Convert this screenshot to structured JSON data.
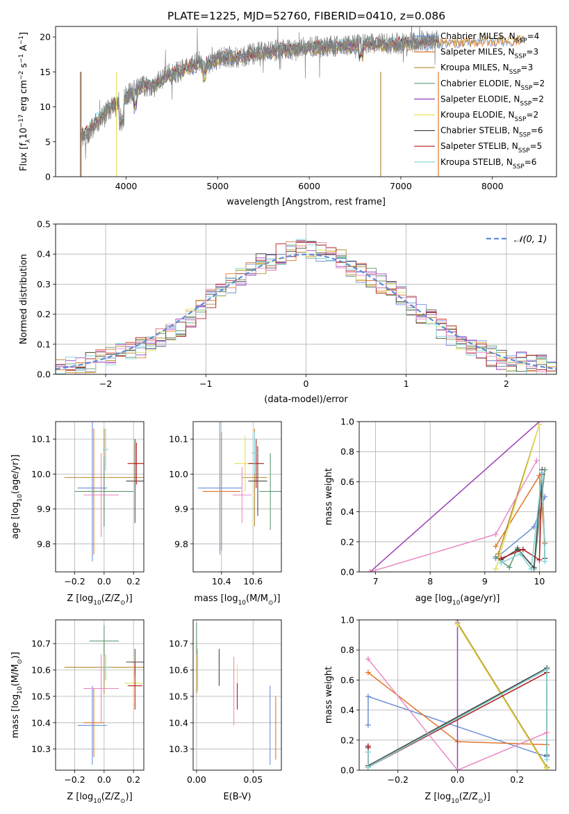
{
  "figure": {
    "title": "PLATE=1225, MJD=52760, FIBERID=0410, z=0.086"
  },
  "series_styles": [
    {
      "name": "Chabrier MILES, N$_{SSP}$=4",
      "label_main": "Chabrier MILES, N",
      "label_sub": "SSP",
      "label_tail": "=4",
      "color": "#6a8fd6"
    },
    {
      "name": "Salpeter MILES, N$_{SSP}$=3",
      "label_main": "Salpeter MILES, N",
      "label_sub": "SSP",
      "label_tail": "=3",
      "color": "#e0762b"
    },
    {
      "name": "Kroupa MILES, N$_{SSP}$=3",
      "label_main": "Kroupa MILES, N",
      "label_sub": "SSP",
      "label_tail": "=3",
      "color": "#b08a2e"
    },
    {
      "name": "Chabrier ELODIE, N$_{SSP}$=2",
      "label_main": "Chabrier ELODIE, N",
      "label_sub": "SSP",
      "label_tail": "=2",
      "color": "#5f9a73"
    },
    {
      "name": "Salpeter ELODIE, N$_{SSP}$=2",
      "label_main": "Salpeter ELODIE, N",
      "label_sub": "SSP",
      "label_tail": "=2",
      "color": "#9b3db8"
    },
    {
      "name": "Kroupa ELODIE, N$_{SSP}$=2",
      "label_main": "Kroupa ELODIE, N",
      "label_sub": "SSP",
      "label_tail": "=2",
      "color": "#e3e05a"
    },
    {
      "name": "Chabrier STELIB, N$_{SSP}$=6",
      "label_main": "Chabrier STELIB, N",
      "label_sub": "SSP",
      "label_tail": "=6",
      "color": "#4a4a4a"
    },
    {
      "name": "Salpeter STELIB, N$_{SSP}$=5",
      "label_main": "Salpeter STELIB, N",
      "label_sub": "SSP",
      "label_tail": "=5",
      "color": "#b01c1c"
    },
    {
      "name": "Kroupa STELIB, N$_{SSP}$=6",
      "label_main": "Kroupa STELIB, N",
      "label_sub": "SSP",
      "label_tail": "=6",
      "color": "#7fd3d8"
    }
  ],
  "chart_data": [
    {
      "id": "spectrum",
      "type": "line",
      "xlabel": "wavelength [Angstrom, rest frame]",
      "ylabel_main": "Flux [f",
      "ylabel_sub": "λ",
      "ylabel_mid": "10",
      "ylabel_sup1": "−17",
      "ylabel_rest": " erg cm",
      "ylabel_sup2": "−2",
      "ylabel_s": " s",
      "ylabel_sup3": "−1",
      "ylabel_a": " A",
      "ylabel_sup4": "−1",
      "ylabel_end": "]",
      "xlim": [
        3230,
        8700
      ],
      "ylim": [
        0,
        21.5
      ],
      "xticks": [
        4000,
        5000,
        6000,
        7000,
        8000
      ],
      "yticks": [
        0,
        5,
        10,
        15,
        20
      ],
      "xticklabels": [
        "4000",
        "5000",
        "6000",
        "7000",
        "8000"
      ],
      "yticklabels": [
        "0",
        "5",
        "10",
        "15",
        "20"
      ],
      "data_wavelength": [
        3500,
        3600,
        3700,
        3800,
        3900,
        4000,
        4100,
        4200,
        4300,
        4400,
        4500,
        4600,
        4700,
        4800,
        4900,
        5000,
        5100,
        5200,
        5300,
        5400,
        5500,
        5600,
        5700,
        5800,
        5900,
        6000,
        6100,
        6200,
        6300,
        6400,
        6500,
        6600,
        6700,
        6800,
        6900,
        7000,
        7100,
        7200,
        7300,
        7400
      ],
      "data_flux": [
        5.5,
        6.5,
        8.0,
        9.5,
        10.3,
        11.5,
        12.5,
        13.0,
        12.8,
        14.2,
        14.8,
        15.2,
        16.0,
        16.4,
        16.2,
        16.8,
        17.2,
        17.0,
        17.2,
        17.6,
        17.8,
        18.0,
        18.2,
        18.1,
        18.4,
        18.5,
        18.6,
        18.7,
        18.6,
        18.8,
        18.9,
        18.9,
        19.0,
        19.0,
        19.1,
        19.1,
        19.2,
        19.3,
        19.4,
        19.6
      ],
      "model_wavelength": [
        3500,
        3600,
        3700,
        3800,
        3900,
        4000,
        4100,
        4200,
        4300,
        4400,
        4500,
        4600,
        4700,
        4800,
        4900,
        5000,
        5100,
        5200,
        5300,
        5400,
        5500,
        5600,
        5700,
        5800,
        5900,
        6000,
        6100,
        6200,
        6300,
        6400,
        6500,
        6600,
        6700,
        6800,
        6900,
        7000,
        7100,
        7200,
        7300,
        7400,
        7500,
        7600,
        7700,
        7800,
        7900,
        8000,
        8100,
        8200,
        8300
      ],
      "model_flux": [
        5.8,
        6.8,
        8.2,
        9.6,
        10.5,
        11.4,
        12.4,
        13.0,
        13.1,
        14.0,
        14.7,
        15.1,
        15.8,
        16.2,
        16.3,
        16.7,
        17.0,
        17.1,
        17.2,
        17.5,
        17.7,
        17.9,
        18.1,
        18.2,
        18.3,
        18.4,
        18.5,
        18.6,
        18.6,
        18.7,
        18.8,
        18.8,
        18.9,
        18.9,
        19.0,
        19.0,
        19.1,
        19.2,
        19.3,
        19.4,
        19.5,
        19.5,
        19.6,
        19.6,
        19.7,
        19.7,
        19.8,
        19.8,
        19.9
      ]
    },
    {
      "id": "residual-hist",
      "type": "bar",
      "xlabel": "(data-model)/error",
      "ylabel": "Normed distribution",
      "legend_label": "𝒩(0, 1)",
      "xlim": [
        -2.5,
        2.5
      ],
      "ylim": [
        0,
        0.5
      ],
      "xticks": [
        -2,
        -1,
        0,
        1,
        2
      ],
      "xticklabels": [
        "−2",
        "−1",
        "0",
        "1",
        "2"
      ],
      "yticks": [
        0.0,
        0.1,
        0.2,
        0.3,
        0.4,
        0.5
      ],
      "yticklabels": [
        "0.0",
        "0.1",
        "0.2",
        "0.3",
        "0.4",
        "0.5"
      ],
      "bin_edges": [
        -2.5,
        -2.4,
        -2.3,
        -2.2,
        -2.1,
        -2.0,
        -1.9,
        -1.8,
        -1.7,
        -1.6,
        -1.5,
        -1.4,
        -1.3,
        -1.2,
        -1.1,
        -1.0,
        -0.9,
        -0.8,
        -0.7,
        -0.6,
        -0.5,
        -0.4,
        -0.3,
        -0.2,
        -0.1,
        0.0,
        0.1,
        0.2,
        0.3,
        0.4,
        0.5,
        0.6,
        0.7,
        0.8,
        0.9,
        1.0,
        1.1,
        1.2,
        1.3,
        1.4,
        1.5,
        1.6,
        1.7,
        1.8,
        1.9,
        2.0,
        2.1,
        2.2,
        2.3,
        2.4,
        2.5
      ],
      "hist_base": [
        0.02,
        0.03,
        0.03,
        0.04,
        0.05,
        0.06,
        0.07,
        0.08,
        0.09,
        0.1,
        0.12,
        0.14,
        0.16,
        0.19,
        0.22,
        0.25,
        0.27,
        0.3,
        0.32,
        0.35,
        0.37,
        0.38,
        0.4,
        0.41,
        0.42,
        0.42,
        0.41,
        0.4,
        0.38,
        0.36,
        0.34,
        0.32,
        0.3,
        0.28,
        0.26,
        0.23,
        0.2,
        0.18,
        0.15,
        0.13,
        0.11,
        0.09,
        0.08,
        0.06,
        0.05,
        0.04,
        0.04,
        0.03,
        0.03,
        0.02
      ]
    },
    {
      "id": "age-vs-z",
      "type": "scatter",
      "xlabel_main": "Z [log",
      "xlabel_sub": "10",
      "xlabel_rest": "(Z/Z",
      "xlabel_sub2": "⊙",
      "xlabel_end": ")]",
      "ylabel_main": "age  [log",
      "ylabel_sub": "10",
      "ylabel_rest": "(age/yr)]",
      "xlim": [
        -0.33,
        0.27
      ],
      "ylim": [
        9.72,
        10.15
      ],
      "xticks": [
        -0.2,
        0.0,
        0.2
      ],
      "xticklabels": [
        "−0.2",
        "0.0",
        "0.2"
      ],
      "yticks": [
        9.8,
        9.9,
        10.0,
        10.1
      ],
      "yticklabels": [
        "9.8",
        "9.9",
        "10.0",
        "10.1"
      ],
      "points": [
        {
          "x": -0.08,
          "y": 9.96,
          "xerr": 0.1,
          "yerr": 0.21
        },
        {
          "x": -0.07,
          "y": 9.95,
          "xerr": 0.08,
          "yerr": 0.18
        },
        {
          "x": 0.0,
          "y": 9.99,
          "xerr": 0.27,
          "yerr": 0.14
        },
        {
          "x": 0.0,
          "y": 9.95,
          "xerr": 0.2,
          "yerr": 0.1
        },
        {
          "x": -0.02,
          "y": 9.94,
          "xerr": 0.12,
          "yerr": 0.12
        },
        {
          "x": 0.21,
          "y": 10.03,
          "xerr": 0.05,
          "yerr": 0.07
        },
        {
          "x": 0.21,
          "y": 9.98,
          "xerr": 0.06,
          "yerr": 0.12
        },
        {
          "x": 0.22,
          "y": 10.03,
          "xerr": 0.06,
          "yerr": 0.06
        },
        {
          "x": 0.01,
          "y": 10.07,
          "xerr": 0.02,
          "yerr": 0.06
        }
      ]
    },
    {
      "id": "age-vs-mass",
      "type": "scatter",
      "xlabel_main": "mass [log",
      "xlabel_sub": "10",
      "xlabel_rest": "(M/M",
      "xlabel_sub2": "⊙",
      "xlabel_end": ")]",
      "xlim": [
        10.22,
        10.78
      ],
      "ylim": [
        9.72,
        10.15
      ],
      "xticks": [
        10.4,
        10.6
      ],
      "xticklabels": [
        "10.4",
        "10.6"
      ],
      "yticks": [
        9.8,
        9.9,
        10.0,
        10.1
      ],
      "yticklabels": [
        "9.8",
        "9.9",
        "10.0",
        "10.1"
      ],
      "points": [
        {
          "x": 10.39,
          "y": 9.96,
          "xerr": 0.14,
          "yerr": 0.19
        },
        {
          "x": 10.4,
          "y": 9.95,
          "xerr": 0.12,
          "yerr": 0.17
        },
        {
          "x": 10.61,
          "y": 9.99,
          "xerr": 0.08,
          "yerr": 0.14
        },
        {
          "x": 10.71,
          "y": 9.95,
          "xerr": 0.07,
          "yerr": 0.11
        },
        {
          "x": 10.53,
          "y": 9.94,
          "xerr": 0.06,
          "yerr": 0.08
        },
        {
          "x": 10.55,
          "y": 10.03,
          "xerr": 0.07,
          "yerr": 0.08
        },
        {
          "x": 10.63,
          "y": 9.98,
          "xerr": 0.06,
          "yerr": 0.1
        },
        {
          "x": 10.62,
          "y": 10.03,
          "xerr": 0.05,
          "yerr": 0.07
        },
        {
          "x": 10.61,
          "y": 10.06,
          "xerr": 0.02,
          "yerr": 0.06
        }
      ]
    },
    {
      "id": "weight-vs-age",
      "type": "line",
      "xlabel_main": "age  [log",
      "xlabel_sub": "10",
      "xlabel_rest": "(age/yr)]",
      "ylabel": "mass weight",
      "xlim": [
        6.7,
        10.3
      ],
      "ylim": [
        0,
        1
      ],
      "xticks": [
        7,
        8,
        9,
        10
      ],
      "xticklabels": [
        "7",
        "8",
        "9",
        "10"
      ],
      "yticks": [
        0.0,
        0.2,
        0.4,
        0.6,
        0.8,
        1.0
      ],
      "yticklabels": [
        "0.0",
        "0.2",
        "0.4",
        "0.6",
        "0.8",
        "1.0"
      ],
      "lines": [
        {
          "x": [
            9.2,
            9.9,
            10.1
          ],
          "y": [
            0.09,
            0.3,
            0.5
          ]
        },
        {
          "x": [
            9.2,
            10.0,
            10.1
          ],
          "y": [
            0.17,
            0.64,
            0.19
          ]
        },
        {
          "x": [
            9.25,
            10.0
          ],
          "y": [
            0.12,
            0.98
          ]
        },
        {
          "x": [
            9.2,
            9.45,
            9.6,
            9.9,
            10.1
          ],
          "y": [
            0.1,
            0.03,
            0.16,
            0.02,
            0.68
          ]
        },
        {
          "x": [
            6.9,
            10.0
          ],
          "y": [
            0.0,
            1.0
          ]
        },
        {
          "x": [
            9.2,
            10.0
          ],
          "y": [
            0.02,
            0.98
          ]
        },
        {
          "x": [
            9.3,
            9.6,
            9.9,
            10.05,
            10.1
          ],
          "y": [
            0.08,
            0.15,
            0.03,
            0.68,
            0.09
          ]
        },
        {
          "x": [
            9.3,
            9.7,
            10.0,
            10.05
          ],
          "y": [
            0.09,
            0.15,
            0.08,
            0.65
          ]
        },
        {
          "x": [
            9.3,
            9.65,
            9.85,
            10.05,
            10.1
          ],
          "y": [
            0.06,
            0.12,
            0.02,
            0.66,
            0.07
          ]
        },
        {
          "x": [
            6.9,
            9.2,
            9.95
          ],
          "y": [
            0.0,
            0.25,
            0.74
          ]
        }
      ]
    },
    {
      "id": "mass-vs-z",
      "type": "scatter",
      "xlabel_main": "Z [log",
      "xlabel_sub": "10",
      "xlabel_rest": "(Z/Z",
      "xlabel_sub2": "⊙",
      "xlabel_end": ")]",
      "ylabel_main": "mass [log",
      "ylabel_sub": "10",
      "ylabel_rest": "(M/M",
      "ylabel_sub2": "⊙",
      "ylabel_end": ")]",
      "xlim": [
        -0.33,
        0.27
      ],
      "ylim": [
        10.22,
        10.79
      ],
      "xticks": [
        -0.2,
        0.0,
        0.2
      ],
      "xticklabels": [
        "−0.2",
        "0.0",
        "0.2"
      ],
      "yticks": [
        10.3,
        10.4,
        10.5,
        10.6,
        10.7
      ],
      "yticklabels": [
        "10.3",
        "10.4",
        "10.5",
        "10.6",
        "10.7"
      ],
      "points": [
        {
          "x": -0.08,
          "y": 10.39,
          "xerr": 0.1,
          "yerr": 0.15
        },
        {
          "x": -0.07,
          "y": 10.4,
          "xerr": 0.07,
          "yerr": 0.13
        },
        {
          "x": 0.0,
          "y": 10.61,
          "xerr": 0.27,
          "yerr": 0.1
        },
        {
          "x": 0.0,
          "y": 10.71,
          "xerr": 0.1,
          "yerr": 0.06
        },
        {
          "x": -0.02,
          "y": 10.53,
          "xerr": 0.12,
          "yerr": 0.13
        },
        {
          "x": 0.2,
          "y": 10.55,
          "xerr": 0.06,
          "yerr": 0.1
        },
        {
          "x": 0.21,
          "y": 10.63,
          "xerr": 0.06,
          "yerr": 0.05
        },
        {
          "x": 0.21,
          "y": 10.54,
          "xerr": 0.05,
          "yerr": 0.09
        },
        {
          "x": 0.01,
          "y": 10.61,
          "xerr": 0.02,
          "yerr": 0.05
        }
      ]
    },
    {
      "id": "mass-vs-ebv",
      "type": "scatter",
      "xlabel": "E(B-V)",
      "xlim": [
        -0.003,
        0.075
      ],
      "ylim": [
        10.22,
        10.79
      ],
      "xticks": [
        0.0,
        0.05
      ],
      "xticklabels": [
        "0.00",
        "0.05"
      ],
      "yticks": [
        10.3,
        10.4,
        10.5,
        10.6,
        10.7
      ],
      "yticklabels": [
        "10.3",
        "10.4",
        "10.5",
        "10.6",
        "10.7"
      ],
      "points": [
        {
          "x": 0.065,
          "y": 10.39,
          "yerr": 0.15
        },
        {
          "x": 0.07,
          "y": 10.38,
          "yerr": 0.12
        },
        {
          "x": 0.0,
          "y": 10.61,
          "yerr": 0.1
        },
        {
          "x": 0.0,
          "y": 10.72,
          "yerr": 0.06
        },
        {
          "x": 0.033,
          "y": 10.52,
          "yerr": 0.13
        },
        {
          "x": 0.036,
          "y": 10.58,
          "yerr": 0.04
        },
        {
          "x": 0.02,
          "y": 10.61,
          "yerr": 0.07
        },
        {
          "x": 0.036,
          "y": 10.5,
          "yerr": 0.05
        },
        {
          "x": 0.001,
          "y": 10.6,
          "yerr": 0.08
        }
      ]
    },
    {
      "id": "weight-vs-z",
      "type": "line",
      "xlabel_main": "Z [log",
      "xlabel_sub": "10",
      "xlabel_rest": "(Z/Z",
      "xlabel_sub2": "⊙",
      "xlabel_end": ")]",
      "ylabel": "mass weight",
      "xlim": [
        -0.33,
        0.33
      ],
      "ylim": [
        0,
        1
      ],
      "xticks": [
        -0.2,
        0.0,
        0.2
      ],
      "xticklabels": [
        "−0.2",
        "0.0",
        "0.2"
      ],
      "yticks": [
        0.0,
        0.2,
        0.4,
        0.6,
        0.8,
        1.0
      ],
      "yticklabels": [
        "0.0",
        "0.2",
        "0.4",
        "0.6",
        "0.8",
        "1.0"
      ],
      "lines": [
        {
          "x": [
            -0.3,
            -0.3,
            0.3
          ],
          "y": [
            0.3,
            0.49,
            0.09
          ]
        },
        {
          "x": [
            -0.3,
            0.0,
            0.3
          ],
          "y": [
            0.65,
            0.19,
            0.17
          ]
        },
        {
          "x": [
            0.0,
            0.3
          ],
          "y": [
            0.98,
            0.02
          ]
        },
        {
          "x": [
            -0.3,
            0.3,
            0.3
          ],
          "y": [
            0.02,
            0.68,
            0.1
          ]
        },
        {
          "x": [
            0.0,
            0.0
          ],
          "y": [
            0.0,
            1.0
          ]
        },
        {
          "x": [
            0.0,
            0.3
          ],
          "y": [
            0.97,
            0.01
          ]
        },
        {
          "x": [
            -0.3,
            -0.3,
            0.3,
            0.3
          ],
          "y": [
            0.15,
            0.03,
            0.68,
            0.1
          ]
        },
        {
          "x": [
            -0.3,
            -0.3,
            0.3
          ],
          "y": [
            0.16,
            0.02,
            0.65
          ]
        },
        {
          "x": [
            -0.3,
            -0.3,
            0.3,
            0.3
          ],
          "y": [
            0.12,
            0.02,
            0.67,
            0.07
          ]
        },
        {
          "x": [
            -0.3,
            0.0,
            0.3
          ],
          "y": [
            0.74,
            0.0,
            0.25
          ]
        }
      ]
    }
  ]
}
